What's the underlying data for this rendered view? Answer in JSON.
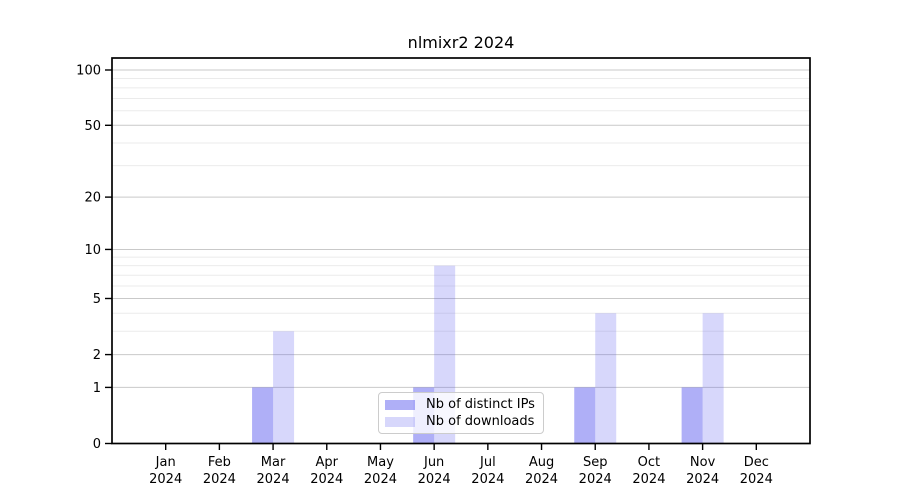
{
  "title": "nlmixr2 2024",
  "chart_data": {
    "type": "bar",
    "title": "nlmixr2 2024",
    "categories": [
      "Jan 2024",
      "Feb 2024",
      "Mar 2024",
      "Apr 2024",
      "May 2024",
      "Jun 2024",
      "Jul 2024",
      "Aug 2024",
      "Sep 2024",
      "Oct 2024",
      "Nov 2024",
      "Dec 2024"
    ],
    "months": [
      "Jan",
      "Feb",
      "Mar",
      "Apr",
      "May",
      "Jun",
      "Jul",
      "Aug",
      "Sep",
      "Oct",
      "Nov",
      "Dec"
    ],
    "year_label": "2024",
    "series": [
      {
        "name": "Nb of distinct IPs",
        "color": "#6060F0",
        "alpha": 0.5,
        "effective_hex": "#ABABF8",
        "values": [
          0,
          0,
          1,
          0,
          0,
          1,
          0,
          0,
          1,
          0,
          1,
          0
        ]
      },
      {
        "name": "Nb of downloads",
        "color": "#6060F0",
        "alpha": 0.25,
        "effective_hex": "#D8D8FA",
        "values": [
          0,
          0,
          3,
          0,
          0,
          8,
          0,
          0,
          4,
          0,
          4,
          0
        ]
      }
    ],
    "xlabel": "",
    "ylabel": "",
    "yscale": "log1p",
    "ylim": [
      0,
      116
    ],
    "yticks": [
      0,
      1,
      2,
      5,
      10,
      20,
      50,
      100
    ],
    "minor_gridlines": [
      3,
      4,
      6,
      7,
      8,
      9,
      30,
      40,
      60,
      70,
      80,
      90
    ],
    "grid": true,
    "legend_position": "bottom-center",
    "colors": {
      "major_grid": "#c9c9c9",
      "minor_grid": "#ebebeb",
      "frame": "#000000",
      "background": "#ffffff"
    }
  }
}
